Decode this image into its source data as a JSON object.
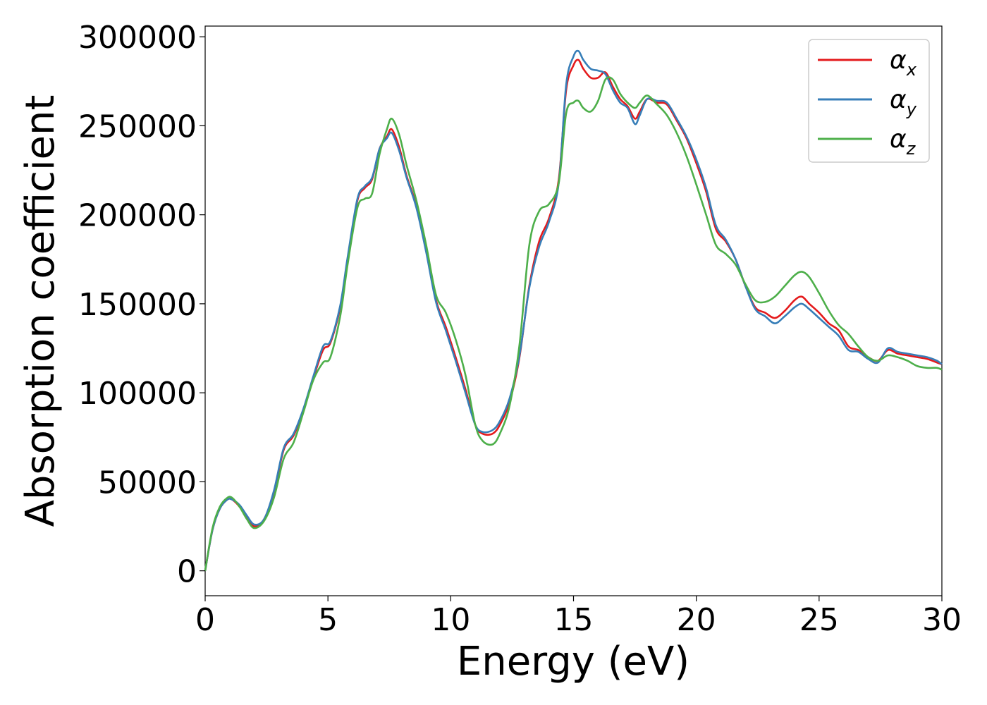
{
  "chart_data": {
    "type": "line",
    "xlabel": "Energy (eV)",
    "ylabel": "Absorption coefficient",
    "xlim": [
      0,
      30
    ],
    "ylim": [
      -14000,
      306000
    ],
    "xticks": [
      "0",
      "5",
      "10",
      "15",
      "20",
      "25",
      "30"
    ],
    "yticks": [
      "0",
      "50000",
      "100000",
      "150000",
      "200000",
      "250000",
      "300000"
    ],
    "grid": false,
    "legend_position": "top-right",
    "series": [
      {
        "name": "α",
        "subscript": "x",
        "color": "#e41a1c",
        "x": [
          0,
          0.3,
          0.6,
          0.9,
          1.1,
          1.4,
          1.7,
          2.0,
          2.4,
          2.8,
          3.2,
          3.6,
          4.0,
          4.4,
          4.8,
          5.1,
          5.5,
          5.8,
          6.2,
          6.5,
          6.8,
          7.1,
          7.4,
          7.6,
          7.9,
          8.2,
          8.6,
          9.0,
          9.4,
          9.8,
          10.2,
          10.6,
          11.0,
          11.3,
          11.7,
          12.0,
          12.4,
          12.8,
          13.2,
          13.6,
          14.0,
          14.4,
          14.7,
          15.0,
          15.2,
          15.4,
          15.7,
          16.0,
          16.3,
          16.6,
          16.9,
          17.2,
          17.5,
          17.7,
          18.0,
          18.4,
          18.8,
          19.2,
          19.6,
          20.0,
          20.4,
          20.8,
          21.2,
          21.6,
          22.0,
          22.4,
          22.8,
          23.2,
          23.6,
          24.0,
          24.3,
          24.6,
          25.0,
          25.4,
          25.8,
          26.2,
          26.6,
          27.0,
          27.4,
          27.8,
          28.2,
          28.6,
          29.0,
          29.4,
          29.8,
          30.0
        ],
        "y": [
          0,
          23000,
          35000,
          40000,
          40000,
          36000,
          30000,
          25000,
          29000,
          44000,
          68000,
          76000,
          90000,
          108000,
          124000,
          128000,
          148000,
          175000,
          208000,
          215000,
          220000,
          237000,
          244000,
          248000,
          238000,
          222000,
          205000,
          180000,
          152000,
          137000,
          120000,
          102000,
          82000,
          77000,
          77000,
          82000,
          95000,
          120000,
          160000,
          185000,
          198000,
          220000,
          270000,
          284000,
          287000,
          282000,
          277000,
          277000,
          280000,
          272000,
          265000,
          261000,
          254000,
          258000,
          265000,
          263000,
          262000,
          253000,
          243000,
          229000,
          213000,
          192000,
          185000,
          175000,
          160000,
          148000,
          145000,
          142000,
          146000,
          152000,
          154000,
          150000,
          145000,
          139000,
          135000,
          126000,
          124000,
          120000,
          118000,
          124000,
          122000,
          121000,
          120000,
          119000,
          117000,
          116000
        ]
      },
      {
        "name": "α",
        "subscript": "y",
        "color": "#377eb8",
        "x": [
          0,
          0.3,
          0.6,
          0.9,
          1.1,
          1.4,
          1.7,
          2.0,
          2.4,
          2.8,
          3.2,
          3.6,
          4.0,
          4.4,
          4.8,
          5.1,
          5.5,
          5.8,
          6.2,
          6.5,
          6.8,
          7.1,
          7.4,
          7.6,
          7.9,
          8.2,
          8.6,
          9.0,
          9.4,
          9.8,
          10.2,
          10.6,
          11.0,
          11.3,
          11.7,
          12.0,
          12.4,
          12.8,
          13.2,
          13.6,
          14.0,
          14.4,
          14.7,
          15.0,
          15.2,
          15.4,
          15.7,
          16.0,
          16.3,
          16.6,
          16.9,
          17.2,
          17.5,
          17.7,
          18.0,
          18.4,
          18.8,
          19.2,
          19.6,
          20.0,
          20.4,
          20.8,
          21.2,
          21.6,
          22.0,
          22.4,
          22.8,
          23.2,
          23.6,
          24.0,
          24.3,
          24.6,
          25.0,
          25.4,
          25.8,
          26.2,
          26.6,
          27.0,
          27.4,
          27.8,
          28.2,
          28.6,
          29.0,
          29.4,
          29.8,
          30.0
        ],
        "y": [
          0,
          23000,
          35000,
          40000,
          40000,
          37000,
          31000,
          26000,
          29000,
          45000,
          69000,
          77000,
          91000,
          109000,
          126000,
          129000,
          149000,
          176000,
          209000,
          216000,
          221000,
          237000,
          243000,
          246000,
          236000,
          221000,
          204000,
          179000,
          151000,
          135000,
          118000,
          100000,
          82000,
          78000,
          79000,
          84000,
          97000,
          121000,
          159000,
          182000,
          196000,
          218000,
          273000,
          289000,
          292000,
          287000,
          282000,
          281000,
          279000,
          270000,
          263000,
          260000,
          251000,
          256000,
          265000,
          264000,
          263000,
          254000,
          244000,
          231000,
          215000,
          194000,
          186000,
          175000,
          160000,
          147000,
          143000,
          139000,
          143000,
          148000,
          150000,
          147000,
          142000,
          137000,
          132000,
          124000,
          123000,
          119000,
          117000,
          125000,
          123000,
          122000,
          121000,
          120000,
          118000,
          116000
        ]
      },
      {
        "name": "α",
        "subscript": "z",
        "color": "#4daf4a",
        "x": [
          0,
          0.3,
          0.6,
          0.9,
          1.1,
          1.4,
          1.7,
          2.0,
          2.4,
          2.8,
          3.2,
          3.6,
          4.0,
          4.4,
          4.8,
          5.1,
          5.5,
          5.8,
          6.2,
          6.5,
          6.8,
          7.1,
          7.4,
          7.6,
          7.9,
          8.2,
          8.6,
          9.0,
          9.4,
          9.8,
          10.2,
          10.6,
          11.0,
          11.3,
          11.7,
          12.0,
          12.4,
          12.8,
          13.2,
          13.6,
          14.0,
          14.4,
          14.7,
          15.0,
          15.2,
          15.4,
          15.7,
          16.0,
          16.3,
          16.6,
          16.9,
          17.2,
          17.5,
          17.7,
          18.0,
          18.4,
          18.8,
          19.2,
          19.6,
          20.0,
          20.4,
          20.8,
          21.2,
          21.6,
          22.0,
          22.4,
          22.8,
          23.2,
          23.6,
          24.0,
          24.3,
          24.6,
          25.0,
          25.4,
          25.8,
          26.2,
          26.6,
          27.0,
          27.4,
          27.8,
          28.2,
          28.6,
          29.0,
          29.4,
          29.8,
          30.0
        ],
        "y": [
          0,
          24000,
          36000,
          41000,
          41000,
          36000,
          29000,
          24000,
          28000,
          41000,
          63000,
          72000,
          89000,
          107000,
          117000,
          120000,
          143000,
          172000,
          204000,
          209000,
          212000,
          234000,
          248000,
          254000,
          245000,
          228000,
          208000,
          183000,
          155000,
          145000,
          130000,
          110000,
          82000,
          73000,
          71000,
          77000,
          93000,
          127000,
          183000,
          202000,
          206000,
          218000,
          257000,
          263000,
          264000,
          260000,
          258000,
          264000,
          276000,
          276000,
          268000,
          263000,
          260000,
          263000,
          267000,
          262000,
          256000,
          246000,
          233000,
          217000,
          200000,
          183000,
          178000,
          172000,
          161000,
          152000,
          151000,
          154000,
          160000,
          166000,
          168000,
          165000,
          156000,
          146000,
          138000,
          133000,
          126000,
          120000,
          118000,
          121000,
          120000,
          118000,
          115000,
          114000,
          114000,
          113000
        ]
      }
    ]
  }
}
